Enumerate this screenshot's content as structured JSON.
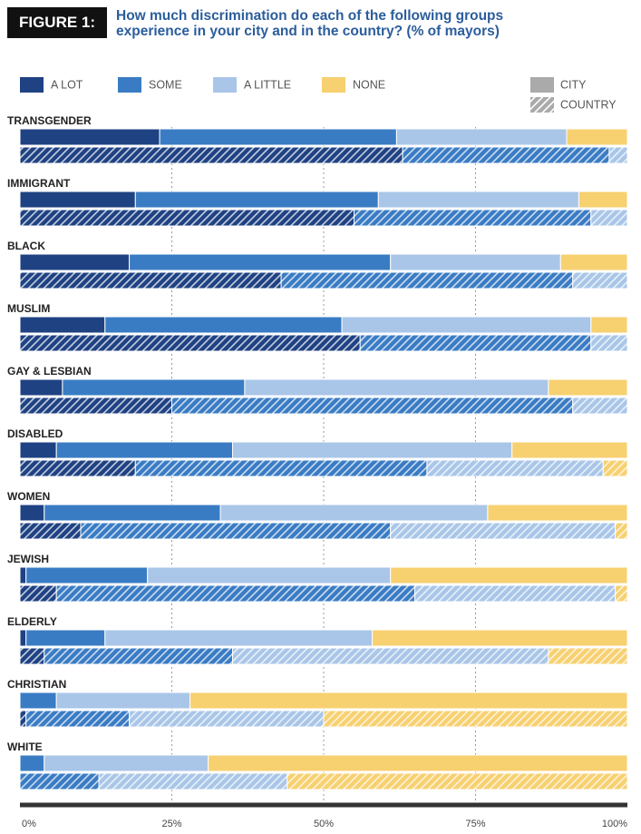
{
  "chart_data": {
    "type": "bar",
    "orientation": "horizontal",
    "stacked": true,
    "figure_label": "FIGURE 1:",
    "title": "How much discrimination do each of the following groups experience in your city and in the country? (% of mayors)",
    "categories": [
      "TRANSGENDER",
      "IMMIGRANT",
      "BLACK",
      "MUSLIM",
      "GAY & LESBIAN",
      "DISABLED",
      "WOMEN",
      "JEWISH",
      "ELDERLY",
      "CHRISTIAN",
      "WHITE"
    ],
    "series": [
      {
        "name": "A LOT",
        "color": "#1f4283"
      },
      {
        "name": "SOME",
        "color": "#3a7cc4"
      },
      {
        "name": "A LITTLE",
        "color": "#a9c6e8"
      },
      {
        "name": "NONE",
        "color": "#f7d070"
      }
    ],
    "bar_sets": [
      {
        "name": "CITY",
        "hatched": false,
        "series": [
          {
            "values": [
              23,
              19,
              18,
              14,
              7,
              6,
              4,
              1,
              1,
              0,
              0
            ]
          },
          {
            "values": [
              39,
              40,
              43,
              39,
              30,
              29,
              29,
              20,
              13,
              6,
              4
            ]
          },
          {
            "values": [
              28,
              33,
              28,
              41,
              50,
              46,
              44,
              40,
              44,
              22,
              27
            ]
          },
          {
            "values": [
              10,
              8,
              11,
              6,
              13,
              19,
              23,
              39,
              42,
              72,
              69
            ]
          }
        ]
      },
      {
        "name": "COUNTRY",
        "hatched": true,
        "series": [
          {
            "values": [
              63,
              55,
              43,
              56,
              25,
              19,
              10,
              6,
              4,
              1,
              0
            ]
          },
          {
            "values": [
              34,
              39,
              48,
              38,
              66,
              48,
              51,
              59,
              31,
              17,
              13
            ]
          },
          {
            "values": [
              3,
              6,
              9,
              6,
              9,
              29,
              37,
              33,
              52,
              32,
              31
            ]
          },
          {
            "values": [
              0,
              0,
              0,
              0,
              0,
              4,
              2,
              2,
              13,
              50,
              56
            ]
          }
        ]
      }
    ],
    "xlim": [
      0,
      100
    ],
    "xticks": [
      {
        "value": 0,
        "label": "0%"
      },
      {
        "value": 25,
        "label": "25%"
      },
      {
        "value": 50,
        "label": "50%"
      },
      {
        "value": 75,
        "label": "75%"
      },
      {
        "value": 100,
        "label": "100%"
      }
    ],
    "grid": true
  }
}
